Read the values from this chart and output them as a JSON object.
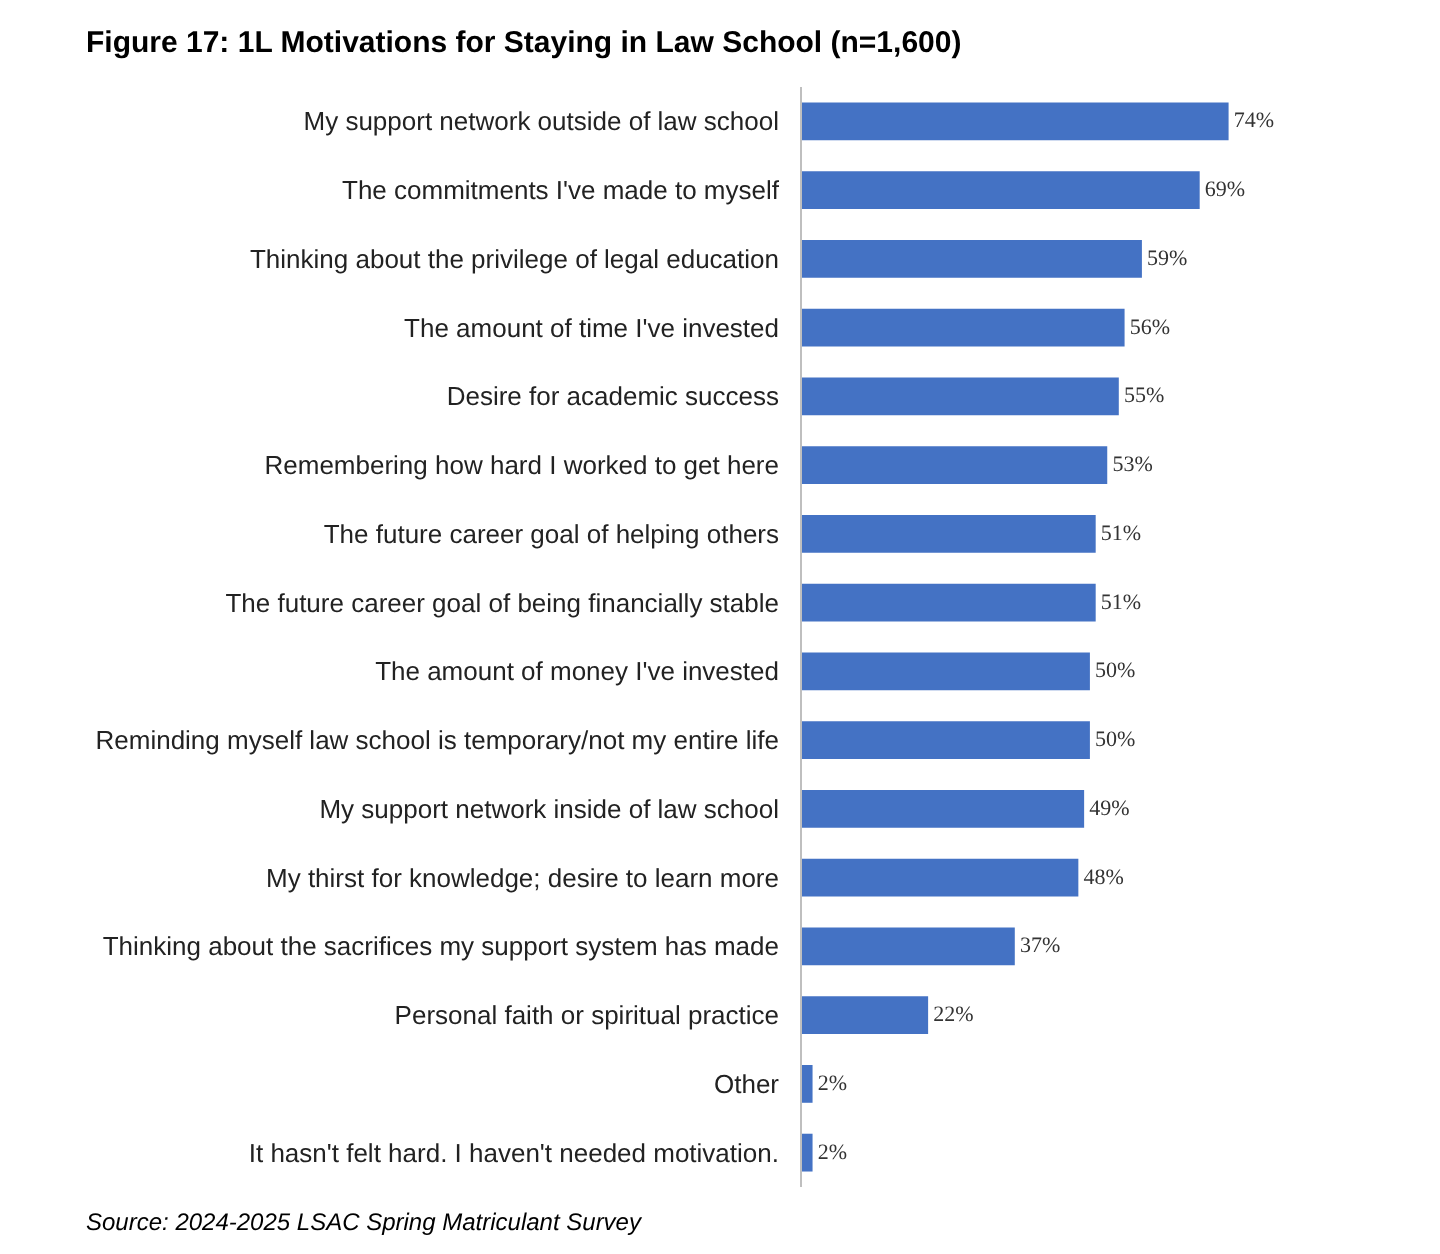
{
  "chart_data": {
    "type": "bar",
    "orientation": "horizontal",
    "title": "Figure 17: 1L Motivations for Staying in Law School (n=1,600)",
    "categories": [
      "My support network outside of law school",
      "The commitments I've made to myself",
      "Thinking about the privilege of legal education",
      "The amount of time I've invested",
      "Desire for academic success",
      "Remembering how hard I worked to get here",
      "The future career goal of helping others",
      "The future career goal of being financially stable",
      "The amount of money I've invested",
      "Reminding myself law school is temporary/not my entire life",
      "My support network inside of law school",
      "My thirst for knowledge; desire to learn more",
      "Thinking about the sacrifices my support system has made",
      "Personal faith or spiritual practice",
      "Other",
      "It hasn't felt hard. I haven't needed motivation."
    ],
    "values": [
      74,
      69,
      59,
      56,
      55,
      53,
      51,
      51,
      50,
      50,
      49,
      48,
      37,
      22,
      2,
      2
    ],
    "value_labels": [
      "74%",
      "69%",
      "59%",
      "56%",
      "55%",
      "53%",
      "51%",
      "51%",
      "50%",
      "50%",
      "49%",
      "48%",
      "37%",
      "22%",
      "2%",
      "2%"
    ],
    "color": "#4472c4",
    "annotations": [
      "Source: 2024-2025 LSAC Spring Matriculant Survey"
    ]
  }
}
